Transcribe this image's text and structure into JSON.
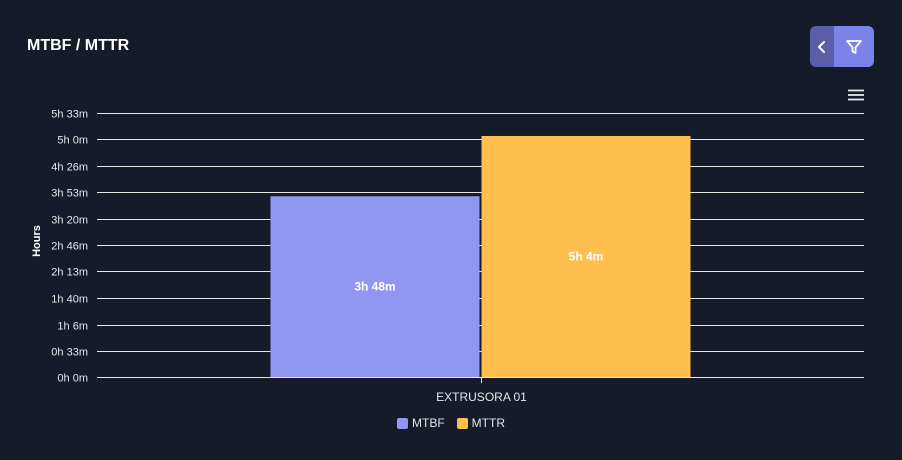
{
  "header": {
    "title": "MTBF / MTTR"
  },
  "toolbar": {
    "back_icon": "chevron-left-icon",
    "filter_icon": "filter-icon",
    "menu_icon": "hamburger-menu-icon"
  },
  "colors": {
    "background": "#151b29",
    "mtbf": "#9097f0",
    "mttr": "#ffbf4f",
    "grid": "#e6e6e6"
  },
  "chart_data": {
    "type": "bar",
    "title": "",
    "ylabel": "Hours",
    "xlabel": "",
    "categories": [
      "EXTRUSORA 01"
    ],
    "ylim": [
      0,
      5.55
    ],
    "yticks": [
      0,
      0.55,
      1.1,
      1.665,
      2.22,
      2.775,
      3.33,
      3.885,
      4.44,
      5.0,
      5.55
    ],
    "ytick_labels": [
      "0h 0m",
      "0h 33m",
      "1h 6m",
      "1h 40m",
      "2h 13m",
      "2h 46m",
      "3h 20m",
      "3h 53m",
      "4h 26m",
      "5h 0m",
      "5h 33m"
    ],
    "grid": true,
    "legend_position": "bottom",
    "series": [
      {
        "name": "MTBF",
        "values": [
          3.8
        ],
        "labels": [
          "3h 48m"
        ]
      },
      {
        "name": "MTTR",
        "values": [
          5.067
        ],
        "labels": [
          "5h 4m"
        ]
      }
    ]
  }
}
